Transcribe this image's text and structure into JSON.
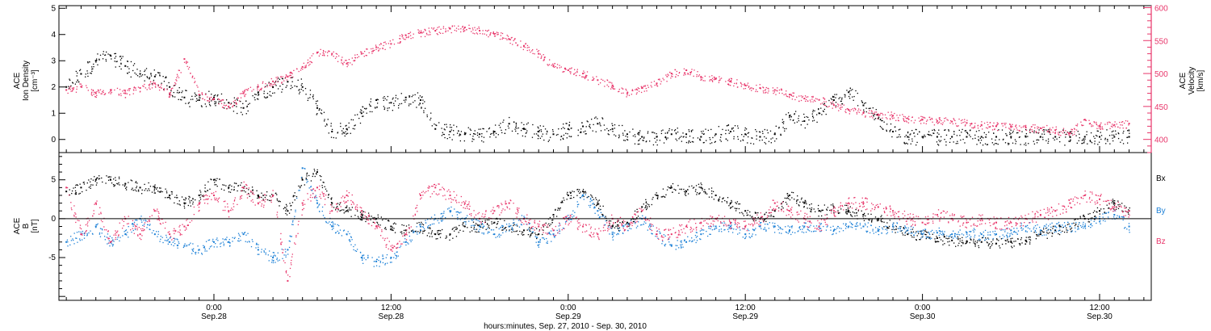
{
  "colors": {
    "density": "#000000",
    "velocity": "#e8356a",
    "bx": "#000000",
    "by": "#1a7fd6",
    "bz": "#e8356a",
    "axis": "#000000"
  },
  "x_axis": {
    "tick_times": [
      "0:00",
      "12:00",
      "0:00",
      "12:00",
      "0:00",
      "12:00"
    ],
    "tick_dates": [
      "Sep.28",
      "Sep.28",
      "Sep.29",
      "Sep.29",
      "Sep.30",
      "Sep.30"
    ],
    "label": "hours:minutes, Sep. 27, 2010 - Sep. 30, 2010"
  },
  "top_panel": {
    "left_label": [
      "ACE",
      "Ion Density",
      "[cm⁻³]"
    ],
    "right_label": [
      "ACE",
      "Velocity",
      "[km/s]"
    ],
    "left_ticks": [
      "0",
      "1",
      "2",
      "3",
      "4",
      "5"
    ],
    "right_ticks": [
      "400",
      "450",
      "500",
      "550",
      "600"
    ]
  },
  "bottom_panel": {
    "left_label": [
      "ACE",
      "B",
      "[nT]"
    ],
    "left_ticks": [
      "-5",
      "0",
      "5"
    ],
    "legend": [
      "Bx",
      "By",
      "Bz"
    ]
  },
  "chart_data": [
    {
      "type": "scatter",
      "title": "",
      "xlabel": "hours:minutes, Sep. 27, 2010 - Sep. 30, 2010",
      "x_unit": "hours from Sep.27 0:00",
      "xlim": [
        13.5,
        87.5
      ],
      "series": [
        {
          "name": "Ion Density",
          "axis": "left",
          "ylabel": "ACE Ion Density [cm^-3]",
          "ylim": [
            -0.5,
            5.1
          ],
          "x": [
            14,
            15,
            16,
            17,
            18,
            19,
            20,
            21,
            22,
            23,
            24,
            25,
            26,
            27,
            28,
            29,
            30,
            31,
            32,
            33,
            34,
            35,
            36,
            37,
            38,
            39,
            40,
            41,
            42,
            43,
            44,
            45,
            46,
            47,
            48,
            49,
            50,
            51,
            52,
            53,
            54,
            55,
            56,
            57,
            58,
            59,
            60,
            61,
            62,
            63,
            64,
            65,
            66,
            67,
            68,
            69,
            70,
            71,
            72,
            73,
            74,
            75,
            76,
            77,
            78,
            79,
            80,
            81,
            82,
            83,
            84,
            85,
            86
          ],
          "y": [
            2.0,
            2.5,
            3.0,
            3.2,
            2.8,
            2.5,
            2.4,
            2.0,
            1.6,
            1.5,
            1.6,
            1.4,
            1.2,
            1.8,
            2.0,
            2.2,
            2.0,
            1.2,
            0.3,
            0.4,
            1.0,
            1.5,
            1.4,
            1.6,
            1.5,
            0.4,
            0.3,
            0.2,
            0.2,
            0.3,
            0.6,
            0.4,
            0.3,
            0.2,
            0.4,
            0.5,
            0.6,
            0.4,
            0.2,
            0.1,
            0.1,
            0.2,
            0.2,
            0.1,
            0.2,
            0.3,
            0.2,
            0.1,
            0.2,
            0.9,
            0.7,
            1.0,
            1.5,
            1.8,
            1.3,
            0.8,
            0.3,
            0.1,
            0.1,
            0.1,
            0.1,
            0.1,
            0.1,
            0.1,
            0.1,
            0.1,
            0.1,
            0.1,
            0.1,
            0.1,
            0.1,
            0.1,
            0.1
          ]
        },
        {
          "name": "Velocity",
          "axis": "right",
          "ylabel": "ACE Velocity [km/s]",
          "ylim": [
            380,
            603
          ],
          "x": [
            14,
            15,
            16,
            17,
            18,
            19,
            20,
            21,
            22,
            23,
            24,
            25,
            26,
            27,
            28,
            29,
            30,
            31,
            32,
            33,
            34,
            35,
            36,
            37,
            38,
            39,
            40,
            41,
            42,
            43,
            44,
            45,
            46,
            47,
            48,
            49,
            50,
            51,
            52,
            53,
            54,
            55,
            56,
            57,
            58,
            59,
            60,
            61,
            62,
            63,
            64,
            65,
            66,
            67,
            68,
            69,
            70,
            71,
            72,
            73,
            74,
            75,
            76,
            77,
            78,
            79,
            80,
            81,
            82,
            83,
            84,
            85,
            86
          ],
          "y": [
            475,
            480,
            470,
            475,
            470,
            478,
            485,
            470,
            522,
            468,
            462,
            450,
            470,
            480,
            488,
            495,
            510,
            532,
            530,
            515,
            530,
            540,
            545,
            558,
            562,
            565,
            568,
            570,
            565,
            560,
            552,
            542,
            530,
            512,
            505,
            500,
            490,
            482,
            470,
            478,
            485,
            500,
            505,
            495,
            492,
            488,
            482,
            478,
            475,
            468,
            462,
            460,
            452,
            445,
            440,
            438,
            436,
            432,
            430,
            428,
            427,
            425,
            422,
            420,
            420,
            418,
            417,
            414,
            409,
            430,
            420,
            422,
            424
          ]
        },
        {
          "name": "Bx",
          "axis": "left",
          "ylabel": "ACE B [nT]",
          "ylim": [
            -10.5,
            8.5
          ],
          "x": [
            14,
            15,
            16,
            17,
            18,
            19,
            20,
            21,
            22,
            23,
            24,
            25,
            26,
            27,
            28,
            29,
            30,
            31,
            32,
            33,
            34,
            35,
            36,
            37,
            38,
            39,
            40,
            41,
            42,
            43,
            44,
            45,
            46,
            47,
            48,
            49,
            50,
            51,
            52,
            53,
            54,
            55,
            56,
            57,
            58,
            59,
            60,
            61,
            62,
            63,
            64,
            65,
            66,
            67,
            68,
            69,
            70,
            71,
            72,
            73,
            74,
            75,
            76,
            77,
            78,
            79,
            80,
            81,
            82,
            83,
            84,
            85,
            86
          ],
          "y": [
            3.5,
            4.0,
            5.0,
            5.0,
            4.5,
            4.0,
            4.0,
            3.0,
            2.0,
            3.0,
            5.0,
            4.0,
            4.0,
            3.0,
            3.0,
            1.0,
            5.0,
            6.0,
            2.0,
            1.0,
            0.5,
            0.0,
            -1.0,
            -1.5,
            -1.0,
            -2.0,
            -2.0,
            -1.0,
            -1.0,
            -0.5,
            -1.0,
            -1.5,
            -2.0,
            0.5,
            3.0,
            3.5,
            2.0,
            -1.0,
            -0.5,
            1.5,
            3.0,
            4.0,
            3.5,
            4.0,
            3.0,
            2.0,
            1.0,
            0.0,
            1.0,
            3.0,
            2.0,
            1.0,
            1.5,
            1.0,
            0.5,
            0.0,
            -1.0,
            -2.0,
            -2.0,
            -2.5,
            -2.8,
            -3.0,
            -3.0,
            -3.2,
            -3.0,
            -2.8,
            -2.0,
            -1.5,
            -1.0,
            0.0,
            1.0,
            2.0,
            1.0
          ]
        },
        {
          "name": "By",
          "axis": "left",
          "ylabel": "ACE B [nT]",
          "ylim": [
            -10.5,
            8.5
          ],
          "x": [
            14,
            15,
            16,
            17,
            18,
            19,
            20,
            21,
            22,
            23,
            24,
            25,
            26,
            27,
            28,
            29,
            30,
            31,
            32,
            33,
            34,
            35,
            36,
            37,
            38,
            39,
            40,
            41,
            42,
            43,
            44,
            45,
            46,
            47,
            48,
            49,
            50,
            51,
            52,
            53,
            54,
            55,
            56,
            57,
            58,
            59,
            60,
            61,
            62,
            63,
            64,
            65,
            66,
            67,
            68,
            69,
            70,
            71,
            72,
            73,
            74,
            75,
            76,
            77,
            78,
            79,
            80,
            81,
            82,
            83,
            84,
            85,
            86
          ],
          "y": [
            -3.0,
            -2.0,
            -1.0,
            -3.0,
            -2.0,
            0.0,
            -2.0,
            -3.0,
            -3.5,
            -4.0,
            -3.0,
            -3.0,
            -2.0,
            -4.0,
            -5.0,
            -4.0,
            6.5,
            2.0,
            -1.0,
            -2.0,
            -5.0,
            -5.5,
            -5.0,
            -3.0,
            -1.0,
            0.0,
            1.0,
            0.0,
            -1.0,
            -2.0,
            -1.0,
            0.0,
            -3.0,
            -2.0,
            0.0,
            3.0,
            1.0,
            -2.0,
            -1.0,
            0.0,
            -2.0,
            -3.5,
            -3.0,
            -2.0,
            -1.0,
            -1.0,
            -2.0,
            -1.0,
            -1.0,
            -1.5,
            -1.0,
            -1.0,
            -1.5,
            -1.0,
            -1.0,
            -1.5,
            -1.0,
            -1.5,
            -2.0,
            -1.8,
            -2.0,
            -1.8,
            -2.0,
            -2.0,
            -1.5,
            -1.0,
            -1.5,
            -1.0,
            -1.0,
            -1.0,
            0.0,
            0.5,
            -1.0
          ]
        },
        {
          "name": "Bz",
          "axis": "left",
          "ylabel": "ACE B [nT]",
          "ylim": [
            -10.5,
            8.5
          ],
          "x": [
            14,
            15,
            16,
            17,
            18,
            19,
            20,
            21,
            22,
            23,
            24,
            25,
            26,
            27,
            28,
            29,
            30,
            31,
            32,
            33,
            34,
            35,
            36,
            37,
            38,
            39,
            40,
            41,
            42,
            43,
            44,
            45,
            46,
            47,
            48,
            49,
            50,
            51,
            52,
            53,
            54,
            55,
            56,
            57,
            58,
            59,
            60,
            61,
            62,
            63,
            64,
            65,
            66,
            67,
            68,
            69,
            70,
            71,
            72,
            73,
            74,
            75,
            76,
            77,
            78,
            79,
            80,
            81,
            82,
            83,
            84,
            85,
            86
          ],
          "y": [
            4.0,
            -2.0,
            2.0,
            -3.0,
            0.0,
            -2.0,
            1.0,
            -2.0,
            -1.0,
            2.0,
            3.0,
            1.0,
            4.0,
            2.0,
            3.0,
            -8.0,
            2.0,
            4.0,
            1.0,
            3.0,
            1.0,
            -1.0,
            -4.0,
            -2.0,
            3.0,
            4.0,
            3.0,
            2.0,
            0.0,
            1.0,
            2.0,
            0.0,
            -1.0,
            -1.5,
            0.0,
            -1.0,
            -2.0,
            0.0,
            -1.0,
            1.0,
            -2.0,
            -2.0,
            -1.0,
            -0.5,
            0.0,
            -0.5,
            -1.0,
            0.0,
            2.0,
            1.0,
            0.0,
            -1.0,
            1.0,
            2.0,
            2.0,
            1.5,
            1.0,
            0.0,
            -0.5,
            0.5,
            0.0,
            -0.5,
            0.0,
            -0.5,
            -0.5,
            0.0,
            0.5,
            1.0,
            2.0,
            3.0,
            2.5,
            1.5,
            1.0
          ]
        }
      ]
    }
  ]
}
